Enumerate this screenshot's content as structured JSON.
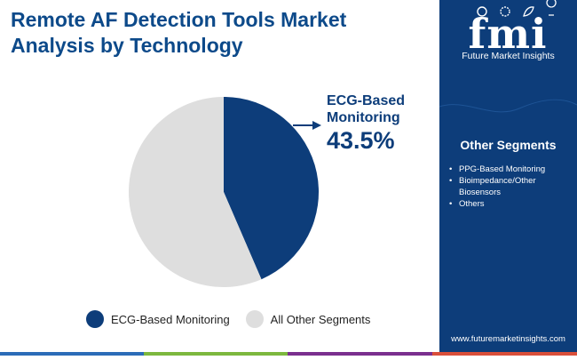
{
  "title": "Remote AF Detection Tools Market Analysis by Technology",
  "chart_data": {
    "type": "pie",
    "title": "Remote AF Detection Tools Market Analysis by Technology",
    "slices": [
      {
        "label": "ECG-Based Monitoring",
        "value": 43.5,
        "color": "#0d3d7a"
      },
      {
        "label": "All Other Segments",
        "value": 56.5,
        "color": "#dedede"
      }
    ],
    "annotation": {
      "label": "ECG-Based Monitoring",
      "value_text": "43.5%"
    },
    "legend_position": "bottom"
  },
  "legend": {
    "items": [
      {
        "label": "ECG-Based Monitoring",
        "color": "#0d3d7a"
      },
      {
        "label": "All Other Segments",
        "color": "#dedede"
      }
    ]
  },
  "sidebar": {
    "logo_name": "fmi",
    "logo_text": "Future Market Insights",
    "segments_title": "Other Segments",
    "segments": [
      "PPG-Based Monitoring",
      "Bioimpedance/Other Biosensors",
      "Others"
    ],
    "website": "www.futuremarketinsights.com"
  },
  "colors": {
    "brand": "#0d3d7a",
    "title": "#0d4a8a",
    "other": "#dedede",
    "footer": [
      "#2b6cb8",
      "#7cb83e",
      "#7a2f8e",
      "#d94f3a"
    ]
  }
}
